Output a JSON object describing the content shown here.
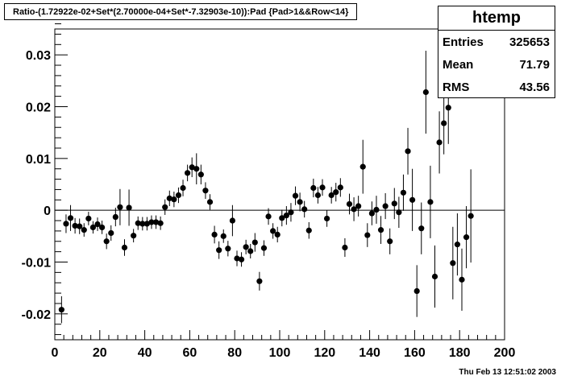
{
  "title": "Ratio-(1.72922e-02+Set*(2.70000e-04+Set*-7.32903e-10)):Pad {Pad>1&&Row<14}",
  "stats": {
    "name": "htemp",
    "rows": [
      {
        "label": "Entries",
        "value": "325653"
      },
      {
        "label": "Mean",
        "value": "71.79"
      },
      {
        "label": "RMS",
        "value": "43.56"
      }
    ]
  },
  "timestamp": "Thu Feb 13 12:51:02 2003",
  "chart_data": {
    "type": "scatter",
    "xlim": [
      0,
      200
    ],
    "ylim": [
      -0.025,
      0.035
    ],
    "x_tick_labels": [
      "0",
      "20",
      "40",
      "60",
      "80",
      "100",
      "120",
      "140",
      "160",
      "180",
      "200"
    ],
    "y_tick_labels": [
      "-0.02",
      "-0.01",
      "0",
      "0.01",
      "0.02",
      "0.03"
    ],
    "grid": false,
    "marker_color": "#000000",
    "points": [
      {
        "x": 3,
        "y": -0.0192,
        "err": 0.0026
      },
      {
        "x": 5,
        "y": -0.0026,
        "err": 0.0018
      },
      {
        "x": 7,
        "y": -0.0015,
        "err": 0.0025
      },
      {
        "x": 9,
        "y": -0.003,
        "err": 0.0015
      },
      {
        "x": 11,
        "y": -0.0031,
        "err": 0.0015
      },
      {
        "x": 13,
        "y": -0.0038,
        "err": 0.0013
      },
      {
        "x": 15,
        "y": -0.0016,
        "err": 0.0013
      },
      {
        "x": 17,
        "y": -0.0033,
        "err": 0.0012
      },
      {
        "x": 19,
        "y": -0.0027,
        "err": 0.0013
      },
      {
        "x": 21,
        "y": -0.0033,
        "err": 0.0013
      },
      {
        "x": 23,
        "y": -0.006,
        "err": 0.0015
      },
      {
        "x": 25,
        "y": -0.0044,
        "err": 0.0015
      },
      {
        "x": 27,
        "y": -0.0013,
        "err": 0.0018
      },
      {
        "x": 29,
        "y": 0.0006,
        "err": 0.0035
      },
      {
        "x": 31,
        "y": -0.0072,
        "err": 0.0016
      },
      {
        "x": 33,
        "y": 0.0005,
        "err": 0.0035
      },
      {
        "x": 35,
        "y": -0.0049,
        "err": 0.0013
      },
      {
        "x": 37,
        "y": -0.0025,
        "err": 0.0013
      },
      {
        "x": 39,
        "y": -0.0026,
        "err": 0.0013
      },
      {
        "x": 41,
        "y": -0.0026,
        "err": 0.0013
      },
      {
        "x": 43,
        "y": -0.0023,
        "err": 0.0013
      },
      {
        "x": 45,
        "y": -0.0023,
        "err": 0.0013
      },
      {
        "x": 47,
        "y": -0.0025,
        "err": 0.0013
      },
      {
        "x": 49,
        "y": 0.0006,
        "err": 0.0015
      },
      {
        "x": 51,
        "y": 0.0023,
        "err": 0.0015
      },
      {
        "x": 53,
        "y": 0.0021,
        "err": 0.0015
      },
      {
        "x": 55,
        "y": 0.0029,
        "err": 0.0015
      },
      {
        "x": 57,
        "y": 0.0043,
        "err": 0.0016
      },
      {
        "x": 59,
        "y": 0.0072,
        "err": 0.0016
      },
      {
        "x": 61,
        "y": 0.0083,
        "err": 0.0019
      },
      {
        "x": 63,
        "y": 0.008,
        "err": 0.003
      },
      {
        "x": 65,
        "y": 0.0069,
        "err": 0.0019
      },
      {
        "x": 67,
        "y": 0.0038,
        "err": 0.0016
      },
      {
        "x": 69,
        "y": 0.0016,
        "err": 0.0015
      },
      {
        "x": 71,
        "y": -0.0047,
        "err": 0.0017
      },
      {
        "x": 73,
        "y": -0.0077,
        "err": 0.0017
      },
      {
        "x": 75,
        "y": -0.005,
        "err": 0.0013
      },
      {
        "x": 77,
        "y": -0.0074,
        "err": 0.0015
      },
      {
        "x": 79,
        "y": -0.002,
        "err": 0.003
      },
      {
        "x": 81,
        "y": -0.0093,
        "err": 0.0015
      },
      {
        "x": 83,
        "y": -0.0095,
        "err": 0.0014
      },
      {
        "x": 85,
        "y": -0.0071,
        "err": 0.0014
      },
      {
        "x": 87,
        "y": -0.0079,
        "err": 0.0014
      },
      {
        "x": 89,
        "y": -0.0062,
        "err": 0.0018
      },
      {
        "x": 91,
        "y": -0.0137,
        "err": 0.0018
      },
      {
        "x": 93,
        "y": -0.0073,
        "err": 0.0015
      },
      {
        "x": 95,
        "y": -0.0012,
        "err": 0.0016
      },
      {
        "x": 97,
        "y": -0.004,
        "err": 0.0015
      },
      {
        "x": 99,
        "y": -0.0047,
        "err": 0.0015
      },
      {
        "x": 101,
        "y": -0.0015,
        "err": 0.0016
      },
      {
        "x": 103,
        "y": -0.001,
        "err": 0.0018
      },
      {
        "x": 105,
        "y": -0.0004,
        "err": 0.0018
      },
      {
        "x": 107,
        "y": 0.0028,
        "err": 0.0018
      },
      {
        "x": 109,
        "y": 0.0016,
        "err": 0.0018
      },
      {
        "x": 111,
        "y": 0.0002,
        "err": 0.0016
      },
      {
        "x": 113,
        "y": -0.0039,
        "err": 0.0016
      },
      {
        "x": 115,
        "y": 0.0043,
        "err": 0.0018
      },
      {
        "x": 117,
        "y": 0.0029,
        "err": 0.0016
      },
      {
        "x": 119,
        "y": 0.0044,
        "err": 0.0016
      },
      {
        "x": 121,
        "y": -0.0016,
        "err": 0.0016
      },
      {
        "x": 123,
        "y": 0.0029,
        "err": 0.0016
      },
      {
        "x": 125,
        "y": 0.0035,
        "err": 0.0018
      },
      {
        "x": 127,
        "y": 0.0044,
        "err": 0.0018
      },
      {
        "x": 129,
        "y": -0.0072,
        "err": 0.0018
      },
      {
        "x": 131,
        "y": 0.0012,
        "err": 0.002
      },
      {
        "x": 133,
        "y": 0.0002,
        "err": 0.0023
      },
      {
        "x": 135,
        "y": 0.0008,
        "err": 0.002
      },
      {
        "x": 137,
        "y": 0.0084,
        "err": 0.0052
      },
      {
        "x": 139,
        "y": -0.0048,
        "err": 0.0023
      },
      {
        "x": 141,
        "y": -0.0006,
        "err": 0.0023
      },
      {
        "x": 143,
        "y": 0.0001,
        "err": 0.0027
      },
      {
        "x": 145,
        "y": -0.0038,
        "err": 0.0027
      },
      {
        "x": 147,
        "y": 0.0008,
        "err": 0.0025
      },
      {
        "x": 149,
        "y": -0.006,
        "err": 0.0025
      },
      {
        "x": 151,
        "y": 0.0013,
        "err": 0.003
      },
      {
        "x": 153,
        "y": -0.0004,
        "err": 0.003
      },
      {
        "x": 155,
        "y": 0.0034,
        "err": 0.0035
      },
      {
        "x": 157,
        "y": 0.0114,
        "err": 0.0045
      },
      {
        "x": 159,
        "y": 0.002,
        "err": 0.006
      },
      {
        "x": 161,
        "y": -0.0156,
        "err": 0.005
      },
      {
        "x": 163,
        "y": -0.0035,
        "err": 0.005
      },
      {
        "x": 165,
        "y": 0.0228,
        "err": 0.008
      },
      {
        "x": 167,
        "y": 0.0016,
        "err": 0.007
      },
      {
        "x": 169,
        "y": -0.0128,
        "err": 0.006
      },
      {
        "x": 171,
        "y": 0.0131,
        "err": 0.006
      },
      {
        "x": 173,
        "y": 0.0168,
        "err": 0.006
      },
      {
        "x": 175,
        "y": 0.0198,
        "err": 0.007
      },
      {
        "x": 177,
        "y": -0.0102,
        "err": 0.007
      },
      {
        "x": 179,
        "y": -0.0066,
        "err": 0.006
      },
      {
        "x": 181,
        "y": -0.0134,
        "err": 0.006
      },
      {
        "x": 183,
        "y": -0.0052,
        "err": 0.006
      },
      {
        "x": 185,
        "y": -0.0011,
        "err": 0.009
      }
    ]
  }
}
